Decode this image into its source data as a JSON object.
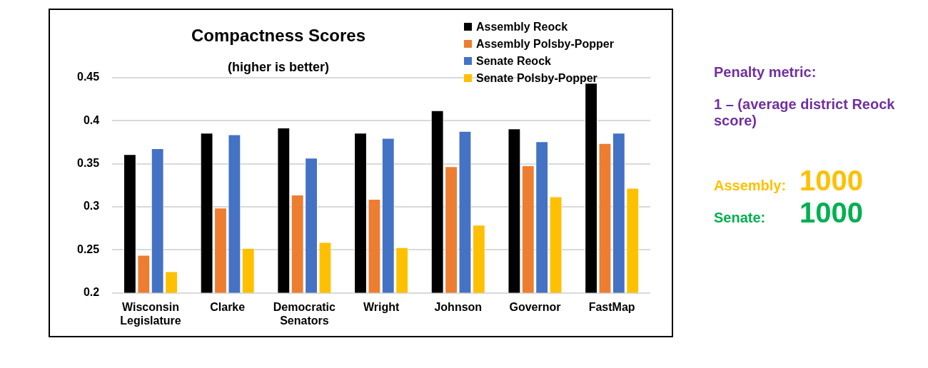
{
  "chart_data": {
    "type": "bar",
    "title": "Compactness Scores",
    "subtitle": "(higher is better)",
    "categories": [
      "Wisconsin Legislature",
      "Clarke",
      "Democratic Senators",
      "Wright",
      "Johnson",
      "Governor",
      "FastMap"
    ],
    "series": [
      {
        "name": "Assembly Reock",
        "color": "#000000",
        "values": [
          0.361,
          0.386,
          0.392,
          0.386,
          0.412,
          0.391,
          0.444
        ]
      },
      {
        "name": "Assembly Polsby-Popper",
        "color": "#ed7d31",
        "values": [
          0.244,
          0.299,
          0.314,
          0.309,
          0.347,
          0.348,
          0.374
        ]
      },
      {
        "name": "Senate Reock",
        "color": "#4472c4",
        "values": [
          0.368,
          0.384,
          0.357,
          0.38,
          0.388,
          0.376,
          0.386
        ]
      },
      {
        "name": "Senate Polsby-Popper",
        "color": "#ffc000",
        "values": [
          0.225,
          0.252,
          0.259,
          0.253,
          0.279,
          0.312,
          0.322
        ]
      }
    ],
    "ylim": [
      0.2,
      0.45
    ],
    "yticks": [
      0.2,
      0.25,
      0.3,
      0.35,
      0.4,
      0.45
    ],
    "grid": "y",
    "legend": "top right",
    "annotations": [
      "Penalty metric:",
      "1 – (average district Reock score)",
      "Assembly: 1000",
      "Senate: 1000"
    ]
  }
}
